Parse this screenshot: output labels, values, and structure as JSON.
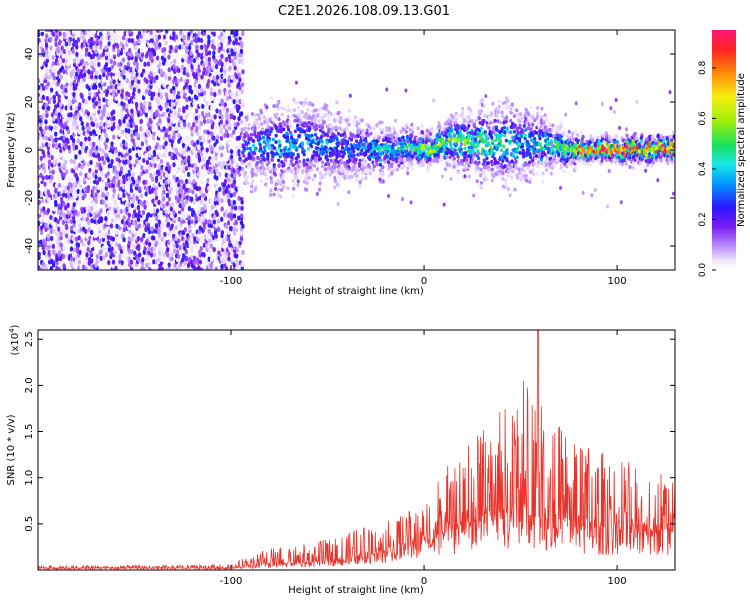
{
  "title": "C2E1.2026.108.09.13.G01",
  "chart_data": [
    {
      "type": "heatmap",
      "title": "C2E1.2026.108.09.13.G01",
      "xlabel": "Height of straight line (km)",
      "ylabel": "Frequency (Hz)",
      "xlim": [
        -200,
        130
      ],
      "ylim": [
        -50,
        50
      ],
      "x_ticks": [
        -100,
        0,
        100
      ],
      "x_tick_labels": [
        "-100",
        "0",
        "100"
      ],
      "y_ticks": [
        -40,
        -20,
        0,
        20,
        40
      ],
      "y_tick_labels": [
        "-40",
        "-20",
        "0",
        "20",
        "40"
      ],
      "colorbar": {
        "label": "Normalized spectral amplitude",
        "range": [
          0,
          0.95
        ],
        "ticks": [
          0.0,
          0.2,
          0.4,
          0.6,
          0.8
        ],
        "tick_labels": [
          "0.0",
          "0.2",
          "0.4",
          "0.6",
          "0.8"
        ]
      },
      "noise_region": {
        "x": [
          -200,
          -94
        ],
        "amplitude": 0.25
      },
      "signal_track": {
        "x": [
          -94,
          -85,
          -75,
          -65,
          -55,
          -45,
          -35,
          -25,
          -15,
          -5,
          5,
          15,
          25,
          35,
          45,
          55,
          65,
          75,
          85,
          95,
          105,
          115,
          125,
          130
        ],
        "center": [
          0,
          1,
          2,
          3,
          2,
          1,
          0,
          0,
          0,
          1,
          1,
          4,
          3,
          2,
          2,
          3,
          2,
          0,
          0,
          0,
          0,
          0,
          1,
          1
        ],
        "spread": [
          7,
          9,
          10,
          10,
          10,
          9,
          8,
          6,
          5,
          4,
          4,
          6,
          8,
          9,
          9,
          8,
          7,
          4,
          3,
          3,
          3,
          3,
          3,
          3
        ],
        "peak": [
          0.35,
          0.4,
          0.45,
          0.4,
          0.4,
          0.35,
          0.35,
          0.45,
          0.5,
          0.6,
          0.7,
          0.6,
          0.55,
          0.55,
          0.5,
          0.45,
          0.5,
          0.7,
          0.9,
          0.95,
          0.95,
          0.95,
          0.95,
          0.95
        ]
      }
    },
    {
      "type": "line",
      "xlabel": "Height of straight line (km)",
      "ylabel": "SNR (10 * v/v)",
      "y_multiplier_label": "(x10",
      "y_multiplier_exp": "4",
      "y_multiplier_close": ")",
      "xlim": [
        -200,
        130
      ],
      "ylim": [
        0,
        2.6
      ],
      "x_ticks": [
        -100,
        0,
        100
      ],
      "x_tick_labels": [
        "-100",
        "0",
        "100"
      ],
      "y_ticks": [
        0.5,
        1.0,
        1.5,
        2.0,
        2.5
      ],
      "y_tick_labels": [
        "0.5",
        "1.0",
        "1.5",
        "2.0",
        "2.5"
      ],
      "line_color": "#e8332b",
      "envelope": {
        "x": [
          -200,
          -150,
          -100,
          -94,
          -85,
          -75,
          -60,
          -45,
          -30,
          -15,
          0,
          10,
          20,
          30,
          40,
          50,
          55,
          60,
          70,
          80,
          90,
          100,
          110,
          120,
          130
        ],
        "base": [
          0.02,
          0.02,
          0.02,
          0.03,
          0.05,
          0.06,
          0.07,
          0.1,
          0.15,
          0.2,
          0.3,
          0.4,
          0.45,
          0.5,
          0.55,
          0.55,
          0.6,
          0.55,
          0.5,
          0.45,
          0.4,
          0.4,
          0.4,
          0.4,
          0.4
        ],
        "peak": [
          0.05,
          0.05,
          0.06,
          0.12,
          0.22,
          0.25,
          0.3,
          0.35,
          0.5,
          0.55,
          0.75,
          1.1,
          1.35,
          1.5,
          1.75,
          1.95,
          2.6,
          1.8,
          1.6,
          1.45,
          1.3,
          1.2,
          1.2,
          1.1,
          1.2
        ]
      }
    }
  ]
}
